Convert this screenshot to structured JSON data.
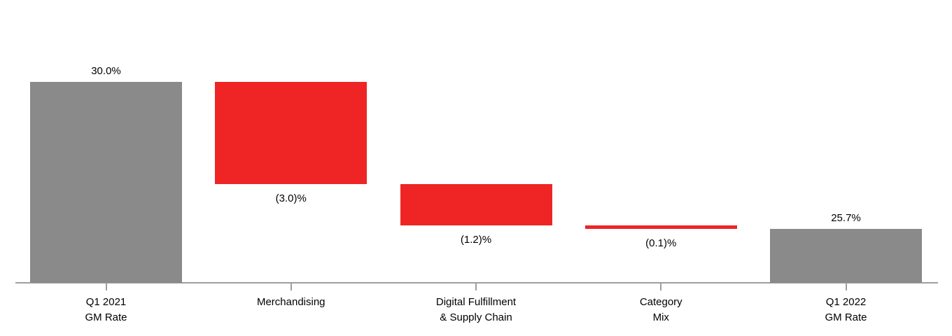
{
  "chart_data": {
    "type": "bar",
    "subtype": "waterfall",
    "title": "",
    "xlabel": "",
    "ylabel": "",
    "unit": "%",
    "grid": false,
    "legend": false,
    "ylim": [
      24.1,
      31.0
    ],
    "categories": [
      "Q1 2021 GM Rate",
      "Merchandising",
      "Digital Fulfillment & Supply Chain",
      "Category Mix",
      "Q1 2022 GM Rate"
    ],
    "steps": [
      {
        "label_lines": [
          "Q1 2021",
          "GM Rate"
        ],
        "role": "total",
        "value": 30.0,
        "value_label": "30.0%",
        "label_position": "above",
        "color": "#8A8A8A"
      },
      {
        "label_lines": [
          "Merchandising"
        ],
        "role": "delta",
        "value": -3.0,
        "value_label": "(3.0)%",
        "label_position": "below",
        "color": "#EE2524"
      },
      {
        "label_lines": [
          "Digital Fulfillment",
          "& Supply Chain"
        ],
        "role": "delta",
        "value": -1.2,
        "value_label": "(1.2)%",
        "label_position": "below",
        "color": "#EE2524"
      },
      {
        "label_lines": [
          "Category",
          "Mix"
        ],
        "role": "delta",
        "value": -0.1,
        "value_label": "(0.1)%",
        "label_position": "below",
        "color": "#EE2524"
      },
      {
        "label_lines": [
          "Q1 2022",
          "GM Rate"
        ],
        "role": "total",
        "value": 25.7,
        "value_label": "25.7%",
        "label_position": "above",
        "color": "#8A8A8A"
      }
    ],
    "colors": {
      "total_bar": "#8A8A8A",
      "decrease_bar": "#EE2524",
      "axis": "#9E9E9E",
      "text": "#000000"
    }
  }
}
